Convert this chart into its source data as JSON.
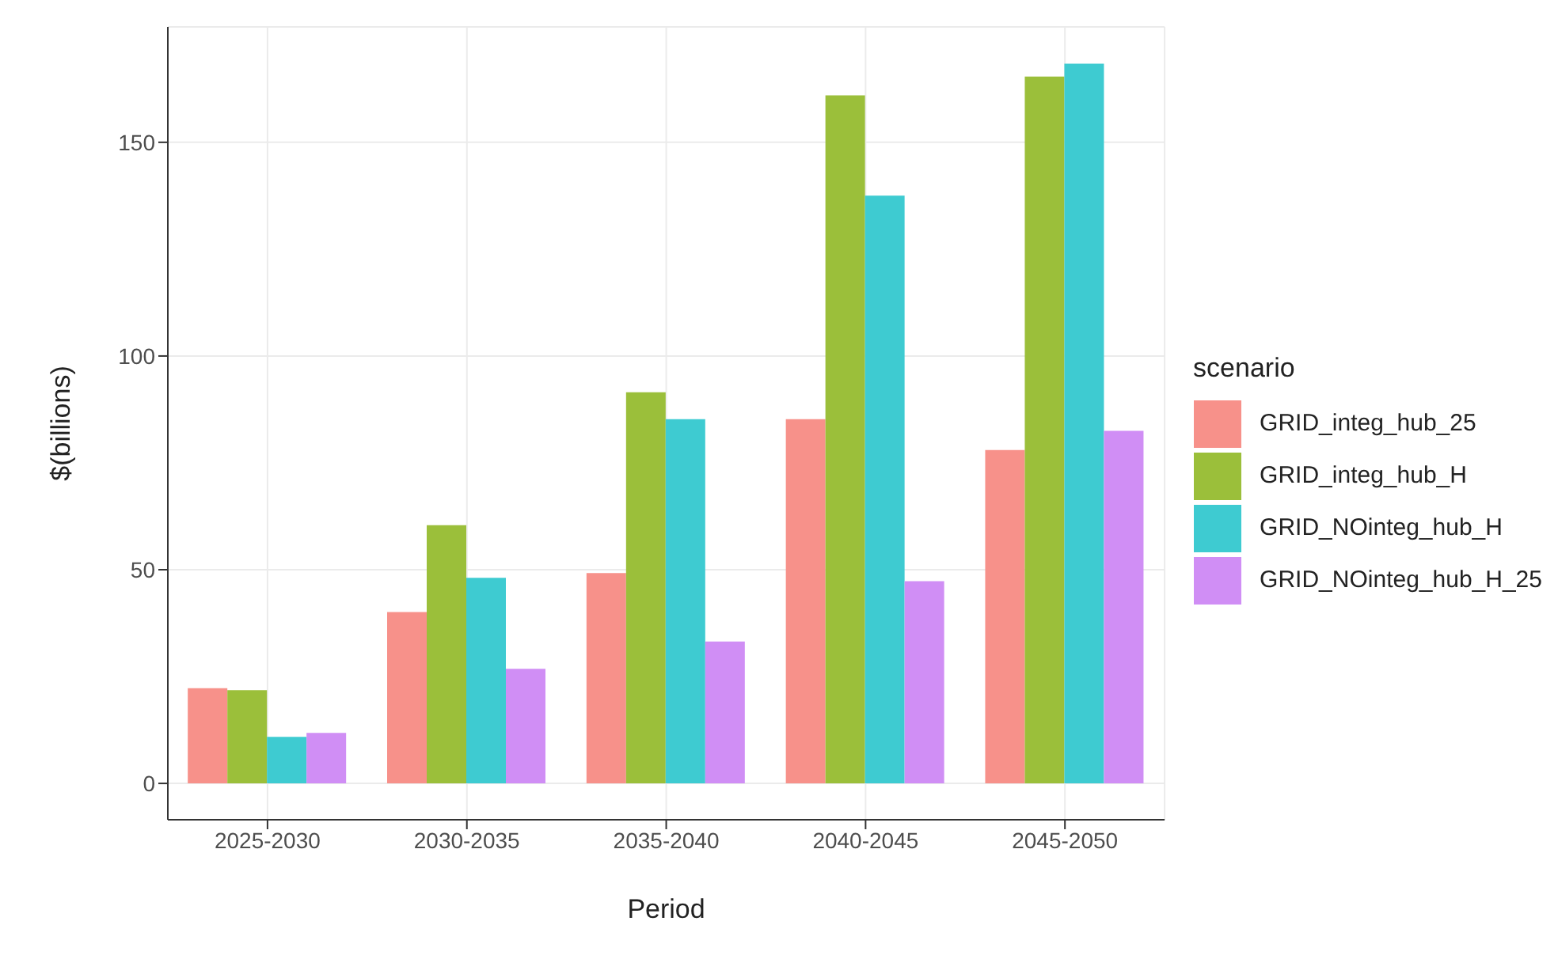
{
  "chart_data": {
    "type": "bar",
    "xlabel": "Period",
    "ylabel": "$(billions)",
    "legend_title": "scenario",
    "categories": [
      "2025-2030",
      "2030-2035",
      "2035-2040",
      "2040-2045",
      "2045-2050"
    ],
    "series": [
      {
        "name": "GRID_integ_hub_25",
        "color": "#f7918a",
        "values": [
          22.3,
          40.1,
          49.2,
          85.2,
          78.0
        ]
      },
      {
        "name": "GRID_integ_hub_H",
        "color": "#9bbf3a",
        "values": [
          21.8,
          60.4,
          91.5,
          161.0,
          165.4
        ]
      },
      {
        "name": "GRID_NOinteg_hub_H",
        "color": "#3ecbd1",
        "values": [
          10.9,
          48.1,
          85.2,
          137.5,
          168.4
        ]
      },
      {
        "name": "GRID_NOinteg_hub_H_25",
        "color": "#d08ef5",
        "values": [
          11.8,
          26.8,
          33.2,
          47.3,
          82.5
        ]
      }
    ],
    "ylim": [
      -8.5,
      177
    ],
    "yticks": [
      0,
      50,
      100,
      150
    ],
    "grid": true,
    "legend": "right"
  }
}
